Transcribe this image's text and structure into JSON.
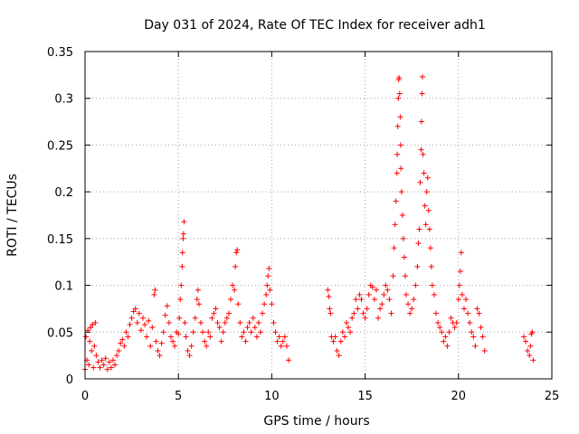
{
  "chart_data": {
    "type": "scatter",
    "title": "Day 031 of 2024, Rate Of TEC Index for receiver adh1",
    "xlabel": "GPS time / hours",
    "ylabel": "ROTI / TECUs",
    "xlim": [
      0,
      25
    ],
    "ylim": [
      0,
      0.35
    ],
    "xticks": [
      0,
      5,
      10,
      15,
      20,
      25
    ],
    "yticks": [
      0,
      0.05,
      0.1,
      0.15,
      0.2,
      0.25,
      0.3,
      0.35
    ],
    "xtick_labels": [
      "0",
      "5",
      "10",
      "15",
      "20",
      "25"
    ],
    "ytick_labels": [
      "0",
      "0.05",
      "0.1",
      "0.15",
      "0.2",
      "0.25",
      "0.3",
      "0.35"
    ],
    "grid": true,
    "marker": "+",
    "point_color": "#ff0000",
    "points": [
      [
        0.0,
        0.01
      ],
      [
        0.05,
        0.045
      ],
      [
        0.1,
        0.02
      ],
      [
        0.15,
        0.052
      ],
      [
        0.2,
        0.015
      ],
      [
        0.25,
        0.04
      ],
      [
        0.3,
        0.055
      ],
      [
        0.35,
        0.03
      ],
      [
        0.4,
        0.058
      ],
      [
        0.45,
        0.012
      ],
      [
        0.5,
        0.035
      ],
      [
        0.55,
        0.06
      ],
      [
        0.6,
        0.025
      ],
      [
        0.7,
        0.018
      ],
      [
        0.8,
        0.012
      ],
      [
        0.9,
        0.02
      ],
      [
        1.0,
        0.015
      ],
      [
        1.1,
        0.022
      ],
      [
        1.2,
        0.01
      ],
      [
        1.3,
        0.018
      ],
      [
        1.4,
        0.012
      ],
      [
        1.5,
        0.02
      ],
      [
        1.6,
        0.015
      ],
      [
        1.7,
        0.025
      ],
      [
        1.8,
        0.03
      ],
      [
        1.9,
        0.038
      ],
      [
        2.0,
        0.042
      ],
      [
        2.1,
        0.035
      ],
      [
        2.2,
        0.05
      ],
      [
        2.3,
        0.045
      ],
      [
        2.4,
        0.058
      ],
      [
        2.5,
        0.065
      ],
      [
        2.6,
        0.072
      ],
      [
        2.7,
        0.075
      ],
      [
        2.8,
        0.06
      ],
      [
        2.9,
        0.07
      ],
      [
        3.0,
        0.052
      ],
      [
        3.1,
        0.065
      ],
      [
        3.2,
        0.058
      ],
      [
        3.3,
        0.045
      ],
      [
        3.4,
        0.062
      ],
      [
        3.5,
        0.035
      ],
      [
        3.6,
        0.055
      ],
      [
        3.7,
        0.09
      ],
      [
        3.75,
        0.095
      ],
      [
        3.8,
        0.04
      ],
      [
        3.9,
        0.03
      ],
      [
        4.0,
        0.025
      ],
      [
        4.1,
        0.038
      ],
      [
        4.2,
        0.05
      ],
      [
        4.3,
        0.068
      ],
      [
        4.4,
        0.078
      ],
      [
        4.5,
        0.06
      ],
      [
        4.6,
        0.045
      ],
      [
        4.7,
        0.04
      ],
      [
        4.8,
        0.035
      ],
      [
        4.9,
        0.05
      ],
      [
        5.0,
        0.048
      ],
      [
        5.05,
        0.065
      ],
      [
        5.1,
        0.085
      ],
      [
        5.15,
        0.1
      ],
      [
        5.2,
        0.12
      ],
      [
        5.22,
        0.135
      ],
      [
        5.25,
        0.15
      ],
      [
        5.27,
        0.155
      ],
      [
        5.3,
        0.168
      ],
      [
        5.35,
        0.06
      ],
      [
        5.4,
        0.045
      ],
      [
        5.5,
        0.03
      ],
      [
        5.6,
        0.025
      ],
      [
        5.7,
        0.035
      ],
      [
        5.8,
        0.05
      ],
      [
        5.9,
        0.065
      ],
      [
        6.0,
        0.085
      ],
      [
        6.05,
        0.095
      ],
      [
        6.1,
        0.08
      ],
      [
        6.2,
        0.06
      ],
      [
        6.3,
        0.05
      ],
      [
        6.4,
        0.04
      ],
      [
        6.5,
        0.035
      ],
      [
        6.6,
        0.05
      ],
      [
        6.7,
        0.045
      ],
      [
        6.8,
        0.065
      ],
      [
        6.9,
        0.07
      ],
      [
        7.0,
        0.075
      ],
      [
        7.1,
        0.06
      ],
      [
        7.2,
        0.055
      ],
      [
        7.3,
        0.04
      ],
      [
        7.4,
        0.05
      ],
      [
        7.5,
        0.06
      ],
      [
        7.6,
        0.065
      ],
      [
        7.7,
        0.07
      ],
      [
        7.8,
        0.085
      ],
      [
        7.9,
        0.1
      ],
      [
        8.0,
        0.095
      ],
      [
        8.05,
        0.12
      ],
      [
        8.1,
        0.135
      ],
      [
        8.15,
        0.138
      ],
      [
        8.2,
        0.08
      ],
      [
        8.3,
        0.06
      ],
      [
        8.4,
        0.045
      ],
      [
        8.5,
        0.05
      ],
      [
        8.6,
        0.04
      ],
      [
        8.7,
        0.055
      ],
      [
        8.8,
        0.06
      ],
      [
        8.9,
        0.05
      ],
      [
        9.0,
        0.065
      ],
      [
        9.1,
        0.055
      ],
      [
        9.2,
        0.045
      ],
      [
        9.3,
        0.06
      ],
      [
        9.4,
        0.05
      ],
      [
        9.5,
        0.07
      ],
      [
        9.6,
        0.08
      ],
      [
        9.7,
        0.09
      ],
      [
        9.75,
        0.1
      ],
      [
        9.8,
        0.11
      ],
      [
        9.85,
        0.118
      ],
      [
        9.9,
        0.095
      ],
      [
        10.0,
        0.08
      ],
      [
        10.1,
        0.06
      ],
      [
        10.2,
        0.05
      ],
      [
        10.3,
        0.04
      ],
      [
        10.4,
        0.045
      ],
      [
        10.5,
        0.035
      ],
      [
        10.6,
        0.04
      ],
      [
        10.7,
        0.045
      ],
      [
        10.8,
        0.035
      ],
      [
        10.9,
        0.02
      ],
      [
        13.0,
        0.095
      ],
      [
        13.05,
        0.088
      ],
      [
        13.1,
        0.075
      ],
      [
        13.15,
        0.07
      ],
      [
        13.2,
        0.045
      ],
      [
        13.3,
        0.04
      ],
      [
        13.4,
        0.045
      ],
      [
        13.5,
        0.03
      ],
      [
        13.6,
        0.025
      ],
      [
        13.7,
        0.04
      ],
      [
        13.8,
        0.05
      ],
      [
        13.9,
        0.045
      ],
      [
        14.0,
        0.06
      ],
      [
        14.1,
        0.055
      ],
      [
        14.2,
        0.05
      ],
      [
        14.3,
        0.065
      ],
      [
        14.4,
        0.07
      ],
      [
        14.5,
        0.085
      ],
      [
        14.6,
        0.075
      ],
      [
        14.7,
        0.09
      ],
      [
        14.8,
        0.085
      ],
      [
        14.9,
        0.07
      ],
      [
        15.0,
        0.065
      ],
      [
        15.1,
        0.075
      ],
      [
        15.2,
        0.09
      ],
      [
        15.3,
        0.1
      ],
      [
        15.4,
        0.098
      ],
      [
        15.5,
        0.085
      ],
      [
        15.6,
        0.095
      ],
      [
        15.7,
        0.065
      ],
      [
        15.8,
        0.075
      ],
      [
        15.9,
        0.08
      ],
      [
        16.0,
        0.09
      ],
      [
        16.1,
        0.1
      ],
      [
        16.2,
        0.095
      ],
      [
        16.3,
        0.085
      ],
      [
        16.4,
        0.07
      ],
      [
        16.5,
        0.11
      ],
      [
        16.55,
        0.14
      ],
      [
        16.6,
        0.165
      ],
      [
        16.65,
        0.19
      ],
      [
        16.7,
        0.22
      ],
      [
        16.72,
        0.24
      ],
      [
        16.75,
        0.27
      ],
      [
        16.78,
        0.3
      ],
      [
        16.8,
        0.32
      ],
      [
        16.82,
        0.322
      ],
      [
        16.85,
        0.305
      ],
      [
        16.88,
        0.28
      ],
      [
        16.9,
        0.25
      ],
      [
        16.92,
        0.225
      ],
      [
        16.95,
        0.2
      ],
      [
        17.0,
        0.175
      ],
      [
        17.05,
        0.15
      ],
      [
        17.1,
        0.13
      ],
      [
        17.15,
        0.11
      ],
      [
        17.2,
        0.09
      ],
      [
        17.3,
        0.08
      ],
      [
        17.4,
        0.07
      ],
      [
        17.5,
        0.075
      ],
      [
        17.6,
        0.085
      ],
      [
        17.7,
        0.1
      ],
      [
        17.8,
        0.12
      ],
      [
        17.85,
        0.145
      ],
      [
        17.9,
        0.16
      ],
      [
        17.95,
        0.21
      ],
      [
        18.0,
        0.245
      ],
      [
        18.02,
        0.275
      ],
      [
        18.05,
        0.305
      ],
      [
        18.07,
        0.323
      ],
      [
        18.1,
        0.24
      ],
      [
        18.15,
        0.22
      ],
      [
        18.2,
        0.185
      ],
      [
        18.25,
        0.165
      ],
      [
        18.3,
        0.2
      ],
      [
        18.35,
        0.215
      ],
      [
        18.4,
        0.18
      ],
      [
        18.45,
        0.16
      ],
      [
        18.5,
        0.14
      ],
      [
        18.55,
        0.12
      ],
      [
        18.6,
        0.1
      ],
      [
        18.7,
        0.09
      ],
      [
        18.8,
        0.07
      ],
      [
        18.9,
        0.06
      ],
      [
        19.0,
        0.055
      ],
      [
        19.1,
        0.05
      ],
      [
        19.2,
        0.04
      ],
      [
        19.3,
        0.045
      ],
      [
        19.4,
        0.035
      ],
      [
        19.5,
        0.05
      ],
      [
        19.6,
        0.065
      ],
      [
        19.7,
        0.06
      ],
      [
        19.8,
        0.055
      ],
      [
        19.9,
        0.06
      ],
      [
        20.0,
        0.085
      ],
      [
        20.05,
        0.1
      ],
      [
        20.1,
        0.115
      ],
      [
        20.15,
        0.135
      ],
      [
        20.2,
        0.09
      ],
      [
        20.3,
        0.075
      ],
      [
        20.4,
        0.085
      ],
      [
        20.5,
        0.07
      ],
      [
        20.6,
        0.06
      ],
      [
        20.7,
        0.05
      ],
      [
        20.8,
        0.045
      ],
      [
        20.9,
        0.035
      ],
      [
        21.0,
        0.075
      ],
      [
        21.1,
        0.07
      ],
      [
        21.2,
        0.055
      ],
      [
        21.3,
        0.045
      ],
      [
        21.4,
        0.03
      ],
      [
        23.5,
        0.045
      ],
      [
        23.6,
        0.04
      ],
      [
        23.7,
        0.03
      ],
      [
        23.8,
        0.025
      ],
      [
        23.85,
        0.035
      ],
      [
        23.9,
        0.048
      ],
      [
        23.95,
        0.05
      ],
      [
        24.0,
        0.02
      ]
    ]
  }
}
